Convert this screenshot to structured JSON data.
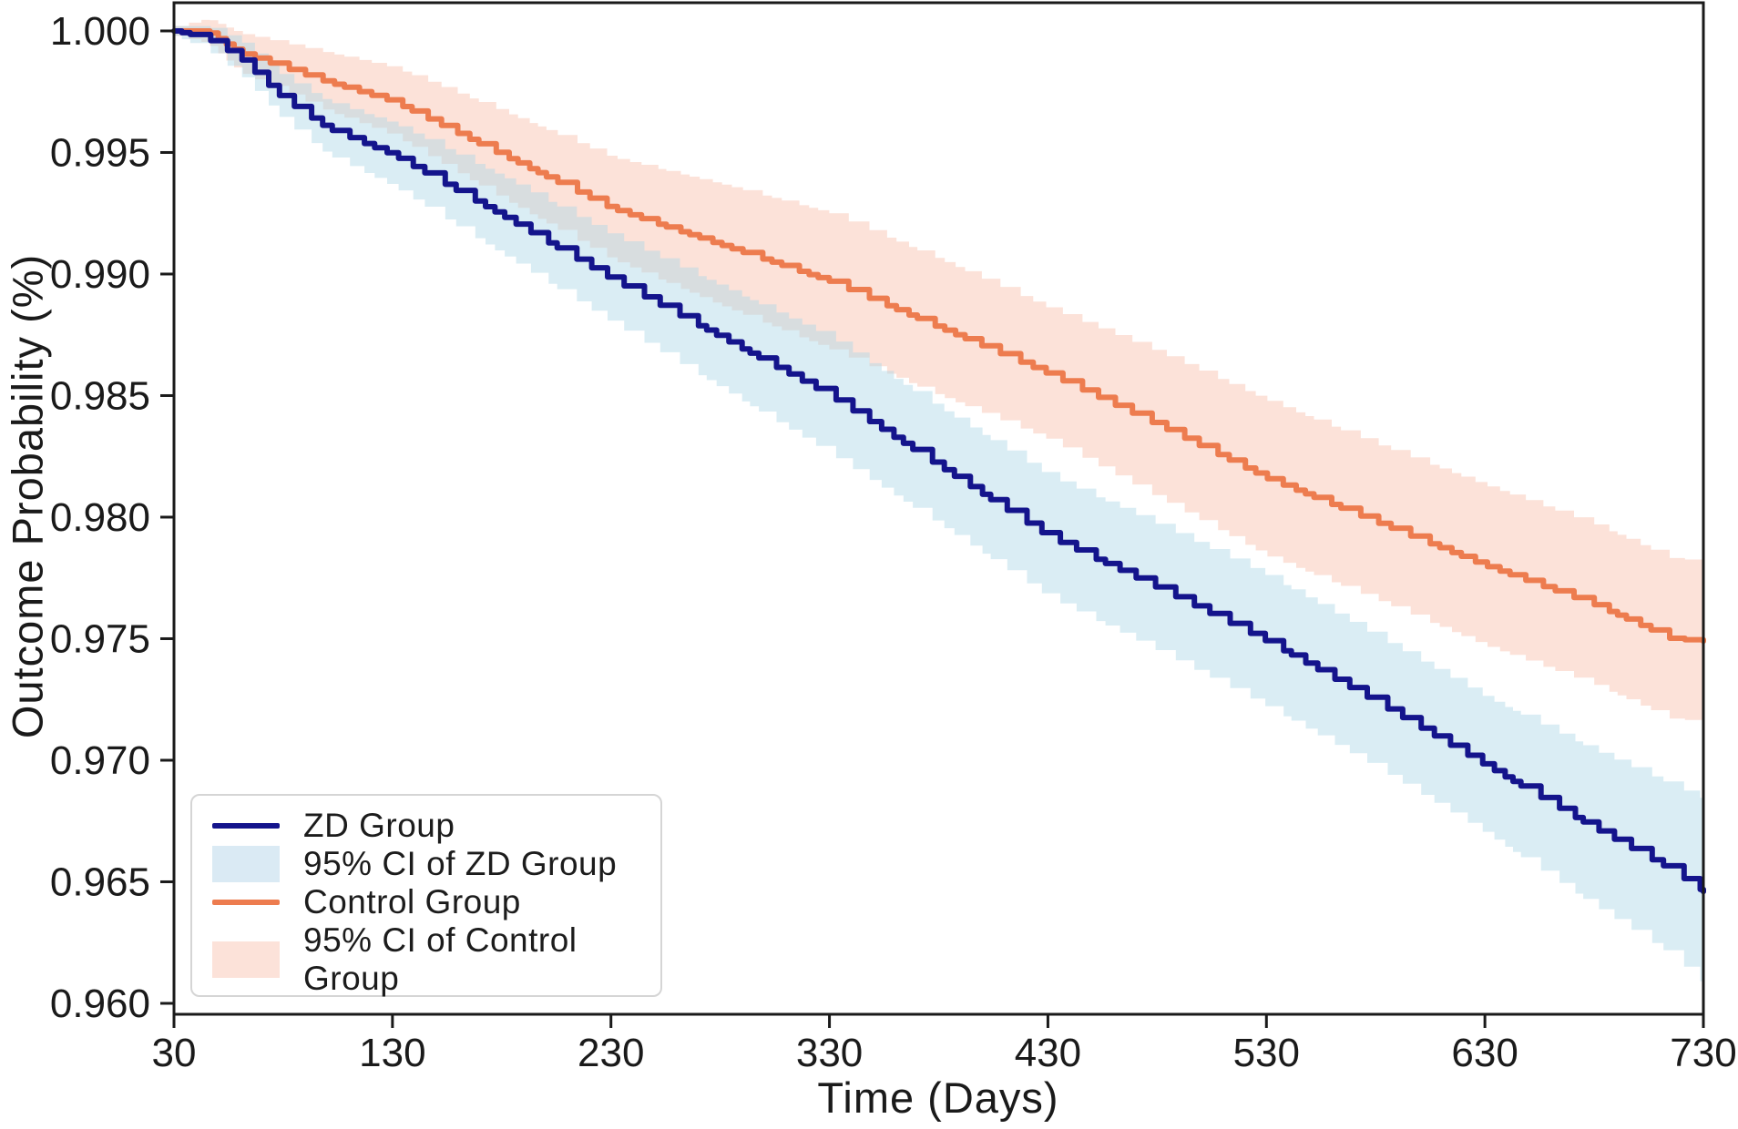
{
  "figure": {
    "xlabel": "Time (Days)",
    "ylabel": "Outcome Probability (%)"
  },
  "legend": {
    "position": "lower left",
    "items": [
      {
        "label": "ZD Group",
        "type": "line",
        "color": "#14148C"
      },
      {
        "label": "95% CI of ZD Group",
        "type": "patch",
        "color": "#DAEAF4"
      },
      {
        "label": "Control Group",
        "type": "line",
        "color": "#ED7C4F"
      },
      {
        "label": "95% CI of Control Group",
        "type": "patch",
        "color": "#FCE2D9"
      }
    ]
  },
  "chart_data": {
    "type": "line",
    "subtype": "kaplan-meier-step-with-ci",
    "title": "",
    "xlabel": "Time (Days)",
    "ylabel": "Outcome Probability (%)",
    "xlim": [
      30,
      730
    ],
    "ylim": [
      0.95955,
      1.00116
    ],
    "x_ticks": [
      30,
      130,
      230,
      330,
      430,
      530,
      630,
      730
    ],
    "y_ticks": [
      1.0,
      0.995,
      0.99,
      0.985,
      0.98,
      0.975,
      0.97,
      0.965,
      0.96
    ],
    "y_tick_labels": [
      "1.000",
      "0.995",
      "0.990",
      "0.985",
      "0.980",
      "0.975",
      "0.970",
      "0.965",
      "0.960"
    ],
    "grid": false,
    "legend_position": "lower left",
    "x_days": [
      30,
      45,
      60,
      80,
      100,
      130,
      180,
      230,
      280,
      330,
      380,
      430,
      480,
      530,
      580,
      630,
      680,
      715,
      730
    ],
    "series": [
      {
        "name": "ZD Group",
        "line_color": "#14148C",
        "ci_label": "95% CI of ZD Group",
        "ci_fill_rgba": "rgba(173,216,230,0.45)",
        "values": [
          1.0,
          0.9997,
          0.9989,
          0.9972,
          0.996,
          0.9949,
          0.9924,
          0.9898,
          0.9874,
          0.985,
          0.9821,
          0.9792,
          0.9771,
          0.9749,
          0.9724,
          0.9698,
          0.9672,
          0.9655,
          0.9646
        ],
        "ci_halfwidth": [
          0.0002,
          0.0005,
          0.0007,
          0.0009,
          0.0011,
          0.0013,
          0.0016,
          0.0018,
          0.0021,
          0.0024,
          0.0024,
          0.0025,
          0.0026,
          0.0027,
          0.0027,
          0.0028,
          0.0032,
          0.0035,
          0.0038
        ]
      },
      {
        "name": "Control Group",
        "line_color": "#ED7C4F",
        "ci_label": "95% CI of Control Group",
        "ci_fill_rgba": "rgba(242,122,83,0.22)",
        "values": [
          1.0,
          1.0,
          0.9991,
          0.9985,
          0.9979,
          0.9971,
          0.9949,
          0.9927,
          0.9912,
          0.9897,
          0.9878,
          0.9859,
          0.9838,
          0.9816,
          0.9798,
          0.978,
          0.9764,
          0.975,
          0.9749
        ],
        "ci_halfwidth": [
          0.0002,
          0.0005,
          0.0008,
          0.001,
          0.0012,
          0.0014,
          0.0018,
          0.0021,
          0.0025,
          0.0028,
          0.0028,
          0.0027,
          0.003,
          0.0032,
          0.0032,
          0.0033,
          0.0033,
          0.0033,
          0.0033
        ]
      }
    ]
  }
}
